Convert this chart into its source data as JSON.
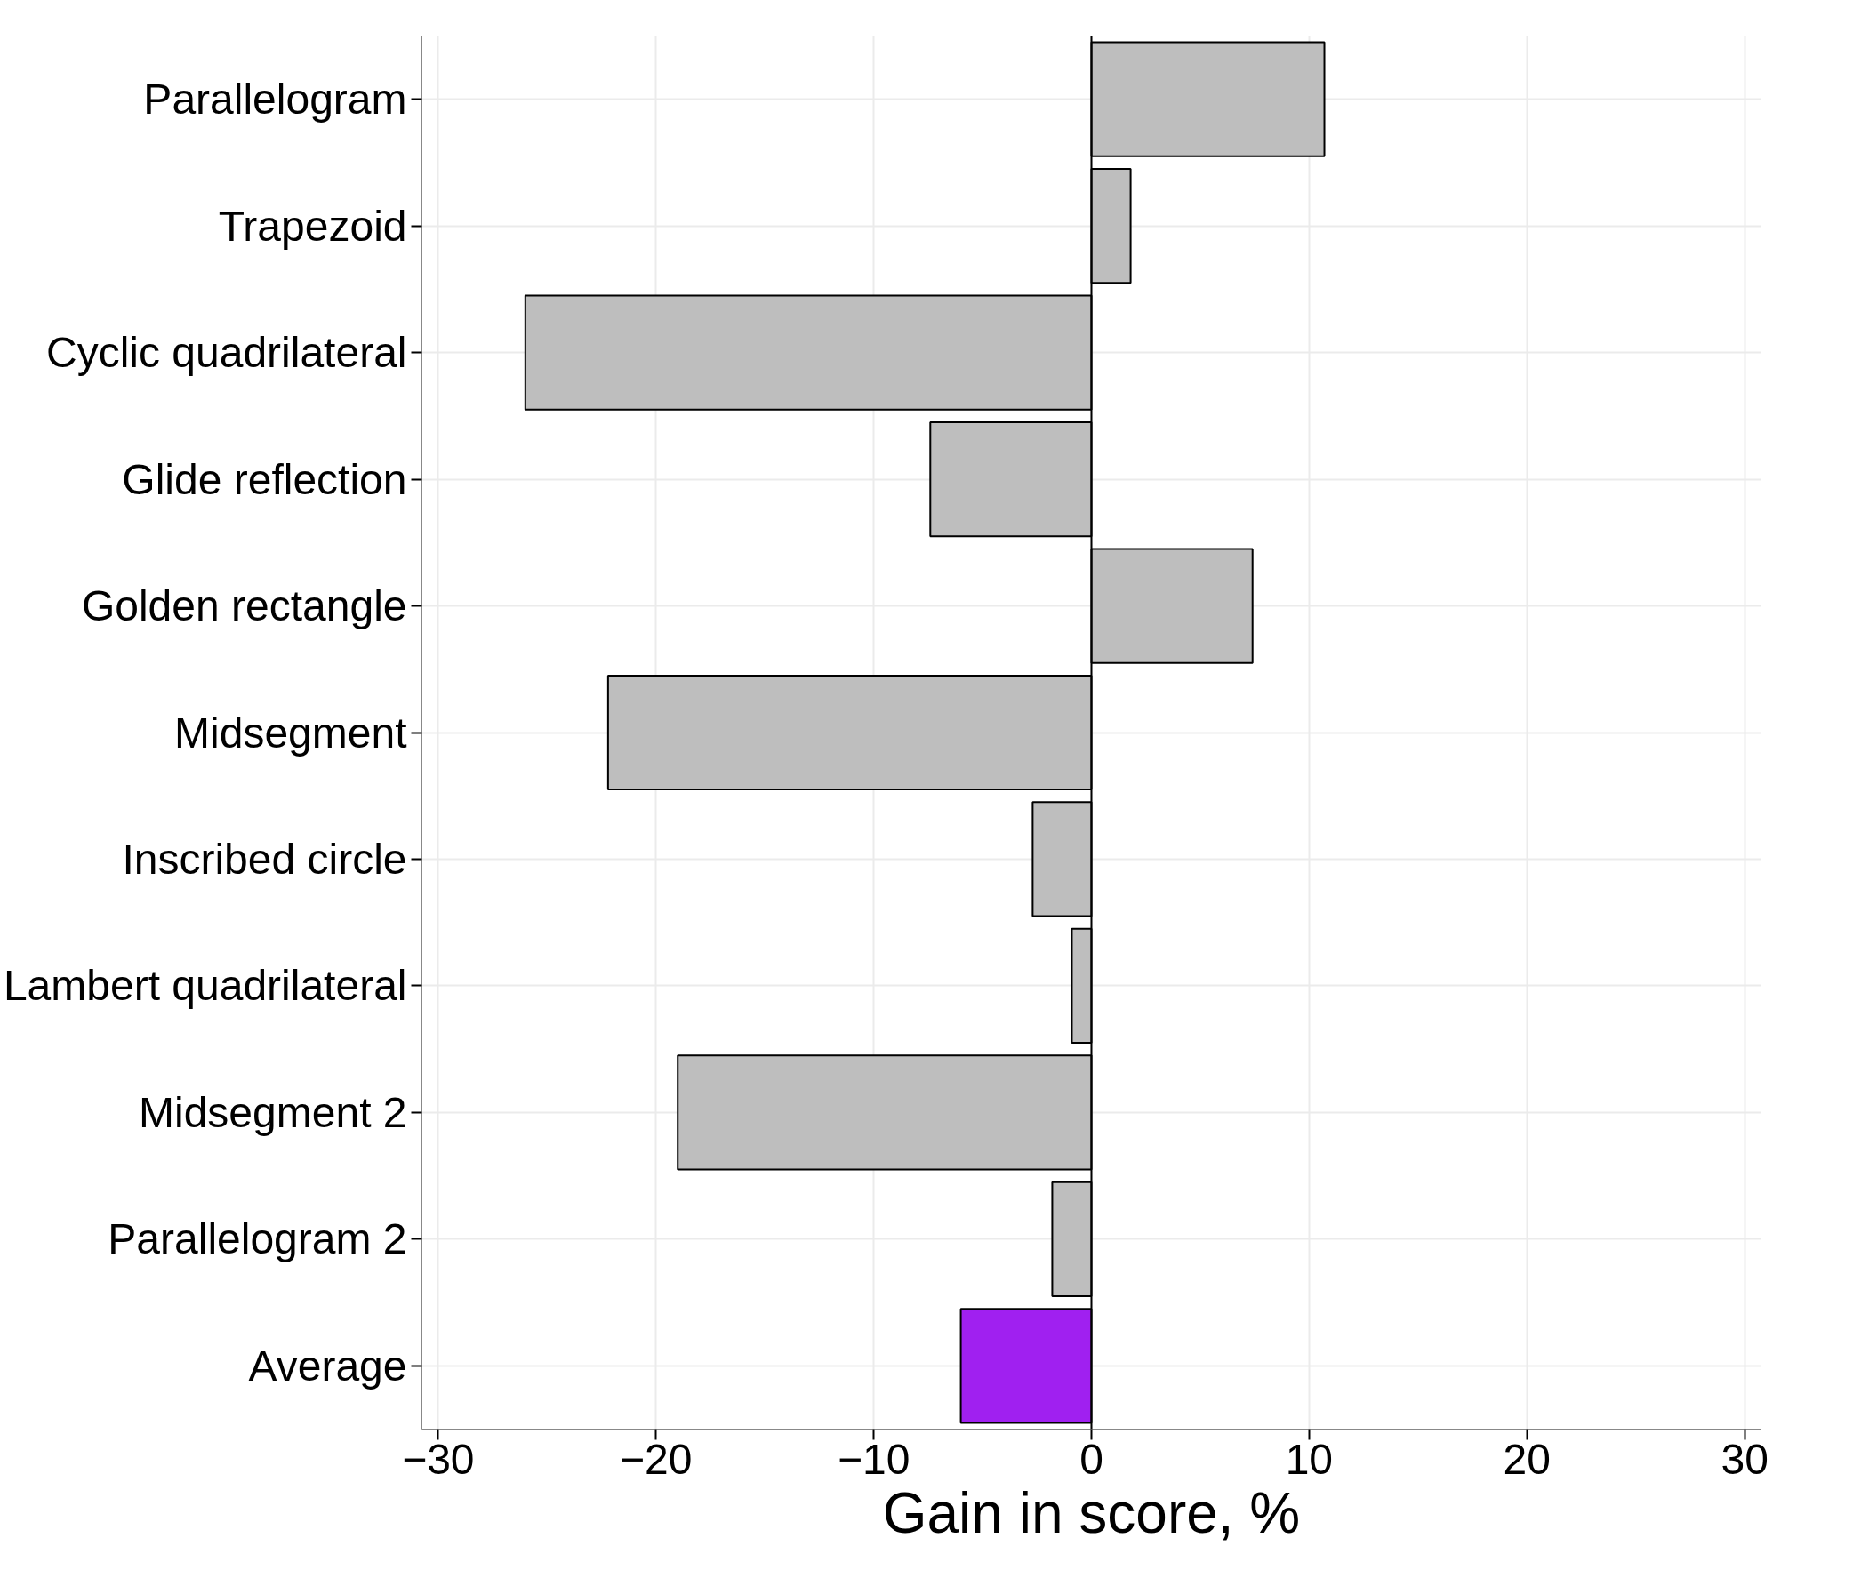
{
  "chart_data": {
    "type": "bar",
    "orientation": "horizontal",
    "xlabel": "Gain in score, %",
    "categories": [
      "Parallelogram",
      "Trapezoid",
      "Cyclic quadrilateral",
      "Glide reflection",
      "Golden rectangle",
      "Midsegment",
      "Inscribed circle",
      "Lambert quadrilateral",
      "Midsegment 2",
      "Parallelogram 2",
      "Average"
    ],
    "values": [
      10.7,
      1.8,
      -26.0,
      -7.4,
      7.4,
      -22.2,
      -2.7,
      -0.9,
      -19.0,
      -1.8,
      -6.0
    ],
    "colors": [
      "#bebebe",
      "#bebebe",
      "#bebebe",
      "#bebebe",
      "#bebebe",
      "#bebebe",
      "#bebebe",
      "#bebebe",
      "#bebebe",
      "#bebebe",
      "#a020f0"
    ],
    "xlim": [
      -30.75,
      30.75
    ],
    "xticks": [
      -30,
      -20,
      -10,
      0,
      10,
      20,
      30
    ],
    "grid": true
  }
}
